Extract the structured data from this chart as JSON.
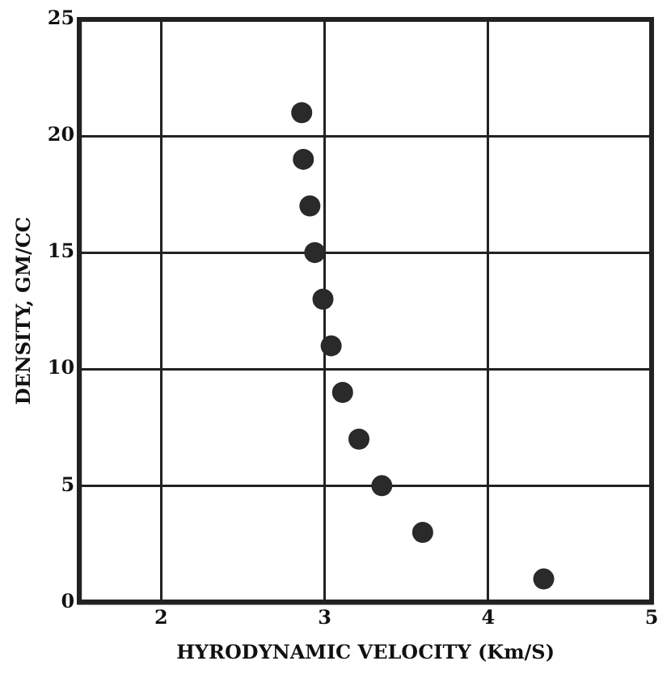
{
  "chart_data": {
    "type": "scatter",
    "xlabel": "HYRODYNAMIC VELOCITY (Km/S)",
    "ylabel": "DENSITY, GM/CC",
    "x": [
      2.86,
      2.87,
      2.91,
      2.94,
      2.99,
      3.04,
      3.11,
      3.21,
      3.35,
      3.6,
      4.34
    ],
    "values": [
      21,
      19,
      17,
      15,
      13,
      11,
      9,
      7,
      5,
      3,
      1
    ],
    "color": "#2a2a2a",
    "marker": "circle",
    "xlim": [
      1.5,
      5
    ],
    "xticks": [
      2,
      3,
      4,
      5
    ],
    "ylim": [
      0,
      25
    ],
    "yticks": [
      0,
      5,
      10,
      15,
      20,
      25
    ],
    "grid": true,
    "legend": false
  }
}
